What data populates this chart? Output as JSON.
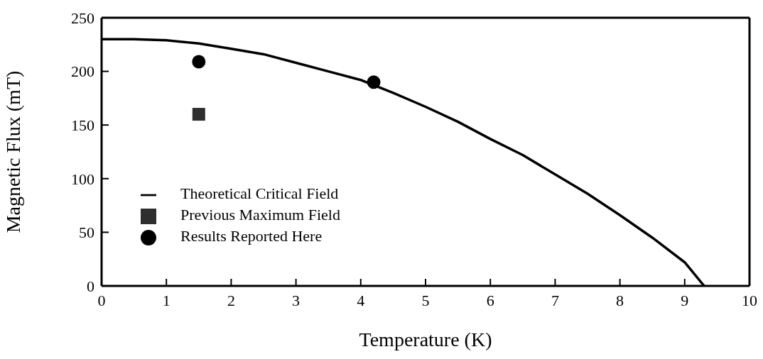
{
  "chart_data": {
    "type": "line",
    "xlabel": "Temperature (K)",
    "ylabel": "Magnetic Flux (mT)",
    "xlim": [
      0,
      10
    ],
    "xticks": [
      0,
      1,
      2,
      3,
      4,
      5,
      6,
      7,
      8,
      9,
      10
    ],
    "ylim": [
      0,
      250
    ],
    "yticks": [
      0,
      50,
      100,
      150,
      200,
      250
    ],
    "grid": false,
    "legend": "bottom left",
    "series": [
      {
        "name": "Theoretical Critical Field",
        "type": "line",
        "color": "#000000",
        "marker": "none",
        "line_style": "solid",
        "x": [
          0,
          0.5,
          1,
          1.5,
          2,
          2.5,
          3,
          3.5,
          4,
          4.5,
          5,
          5.5,
          6,
          6.5,
          7,
          7.5,
          8,
          8.5,
          9,
          9.3
        ],
        "values": [
          230,
          230,
          229,
          226,
          221,
          216,
          208,
          200,
          192,
          180,
          167,
          153,
          137,
          122,
          104,
          86,
          66,
          45,
          22,
          0
        ]
      },
      {
        "name": "Previous Maximum Field",
        "type": "scatter",
        "color": "#2e2e2e",
        "marker": "square",
        "x": [
          1.5
        ],
        "values": [
          160
        ]
      },
      {
        "name": "Results Reported Here",
        "type": "scatter",
        "color": "#000000",
        "marker": "circle",
        "x": [
          1.5,
          4.2
        ],
        "values": [
          209,
          190
        ]
      }
    ]
  }
}
